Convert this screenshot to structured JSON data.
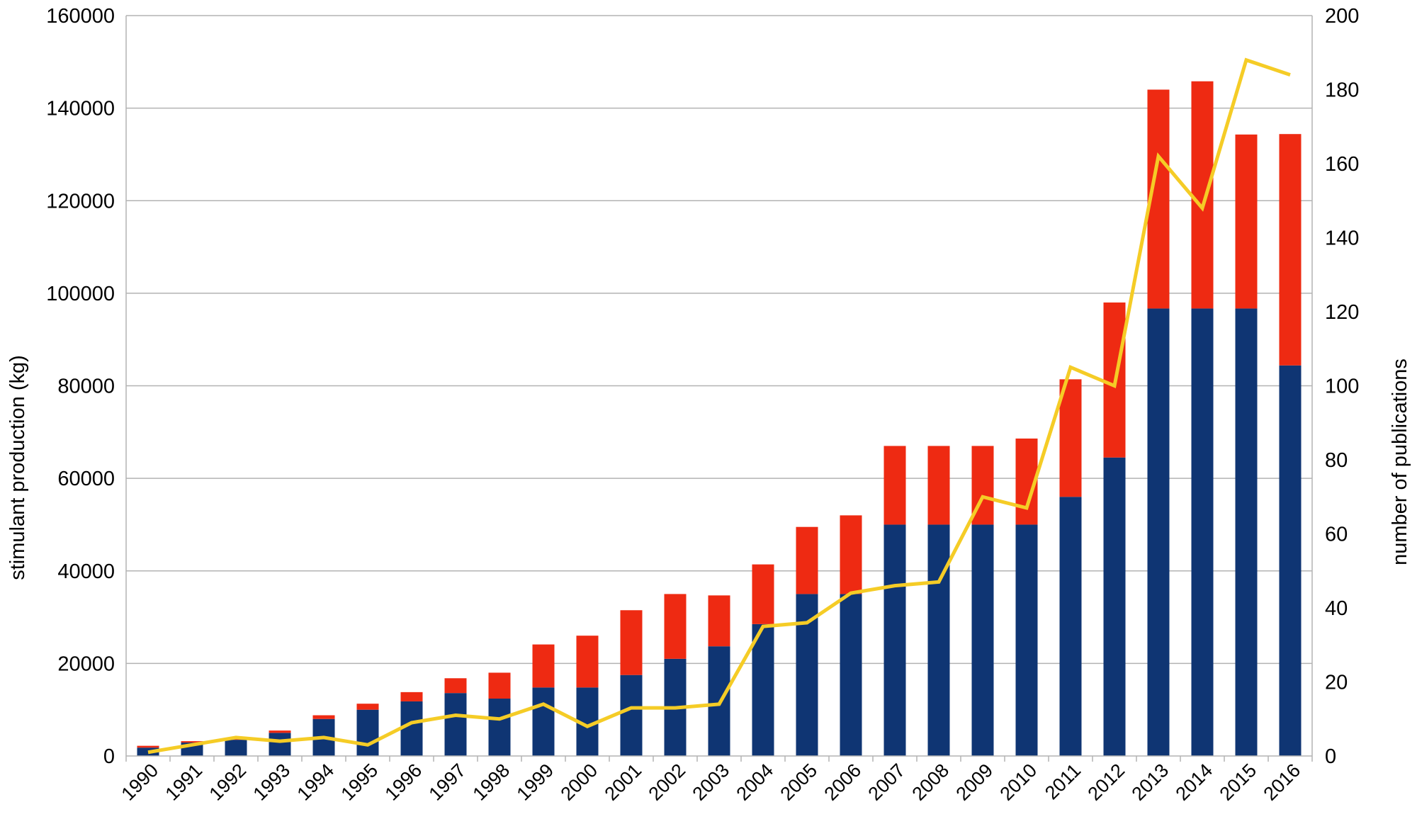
{
  "chart_data": {
    "type": "bar",
    "stacked": true,
    "categories": [
      "1990",
      "1991",
      "1992",
      "1993",
      "1994",
      "1995",
      "1996",
      "1997",
      "1998",
      "1999",
      "2000",
      "2001",
      "2002",
      "2003",
      "2004",
      "2005",
      "2006",
      "2007",
      "2008",
      "2009",
      "2010",
      "2011",
      "2012",
      "2013",
      "2014",
      "2015",
      "2016"
    ],
    "series": [
      {
        "type": "bar",
        "axis": "left",
        "color": "#0f3573",
        "values": [
          1800,
          2900,
          3500,
          5000,
          8000,
          10000,
          11800,
          13600,
          12400,
          14800,
          14800,
          17500,
          21000,
          23700,
          28500,
          35000,
          35000,
          50000,
          50000,
          50000,
          50000,
          56000,
          64500,
          96700,
          96700,
          96700,
          84400
        ]
      },
      {
        "type": "bar",
        "axis": "left",
        "color": "#ee2a12",
        "values": [
          400,
          300,
          200,
          500,
          800,
          1300,
          2000,
          3200,
          5600,
          9300,
          11200,
          14000,
          14000,
          11000,
          12900,
          14500,
          17000,
          17000,
          17000,
          17000,
          18600,
          25400,
          33500,
          47300,
          49100,
          37600,
          50000
        ]
      },
      {
        "type": "line",
        "axis": "right",
        "color": "#f5cc26",
        "values": [
          1,
          3,
          5,
          4,
          5,
          3,
          9,
          11,
          10,
          14,
          8,
          13,
          13,
          14,
          35,
          36,
          44,
          46,
          47,
          70,
          67,
          105,
          100,
          162,
          148,
          188,
          184
        ]
      }
    ],
    "ylabel": "stimulant production (kg)",
    "ylim": [
      0,
      160000
    ],
    "yticks": [
      "0",
      "20000",
      "40000",
      "60000",
      "80000",
      "100000",
      "120000",
      "140000",
      "160000"
    ],
    "y2label": "number of publications",
    "y2lim": [
      0,
      200
    ],
    "y2ticks": [
      "0",
      "20",
      "40",
      "60",
      "80",
      "100",
      "120",
      "140",
      "160",
      "180",
      "200"
    ],
    "grid": true,
    "legend": "none"
  }
}
